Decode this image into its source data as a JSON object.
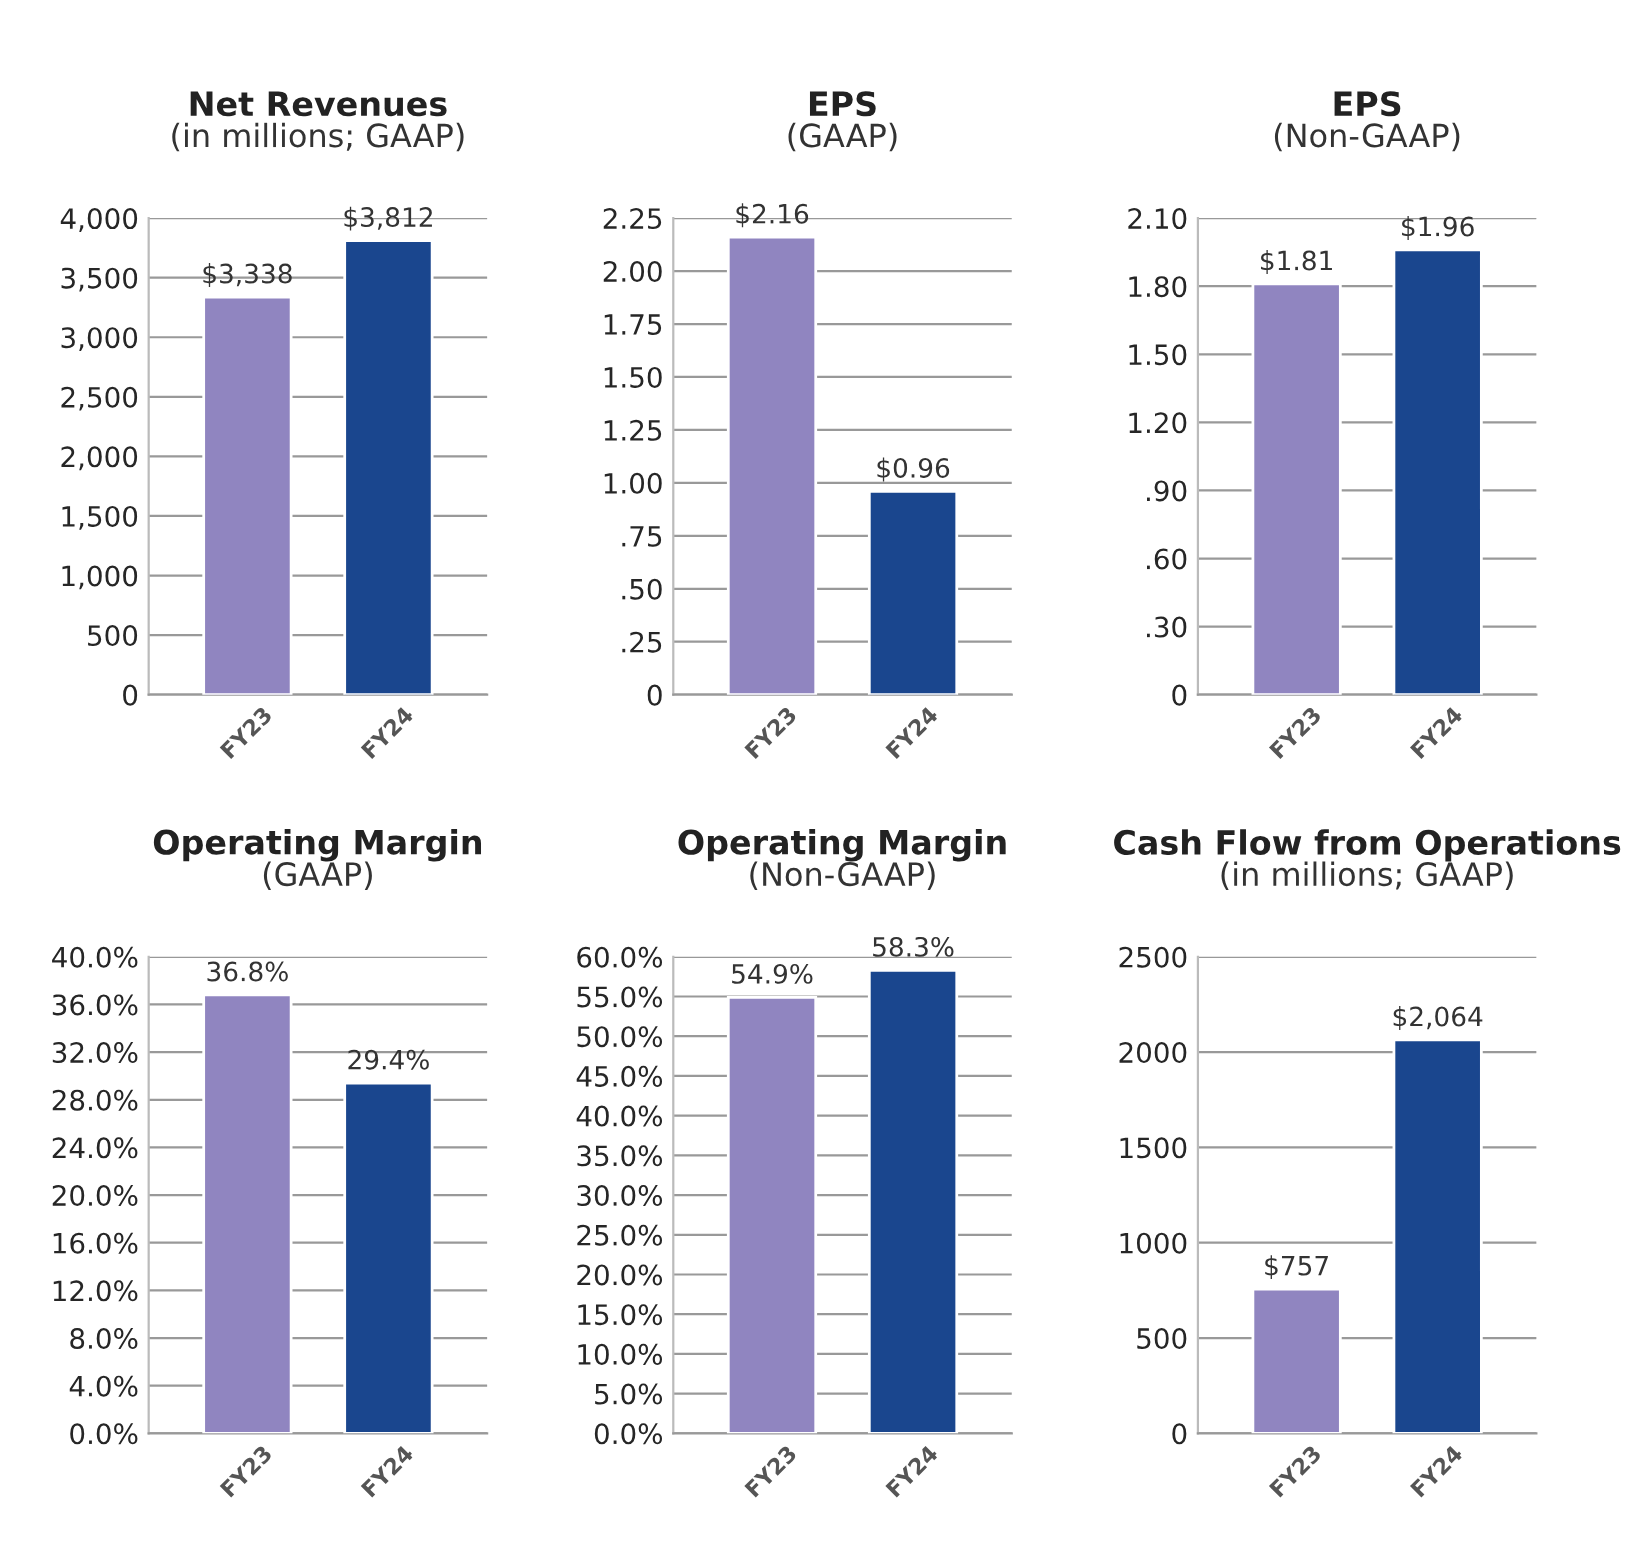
{
  "chart_data": [
    {
      "type": "bar",
      "title": "Net Revenues",
      "subtitle": "(in millions; GAAP)",
      "categories": [
        "FY23",
        "FY24"
      ],
      "values": [
        3338,
        3812
      ],
      "colors": [
        "#9085c0",
        "#1a468e"
      ],
      "value_labels": [
        "$3,338",
        "$3,812"
      ],
      "ylim": [
        0,
        4000
      ],
      "yticks": [
        0,
        500,
        {
          "value": 1000,
          "label": "1,000"
        },
        {
          "value": 1500,
          "label": "1,500"
        },
        {
          "value": 2000,
          "label": "2,000"
        },
        {
          "value": 2500,
          "label": "2,500"
        },
        {
          "value": 3000,
          "label": "3,000"
        },
        {
          "value": 3500,
          "label": "3,500"
        },
        {
          "value": 4000,
          "label": "4,000"
        }
      ],
      "grid": "y"
    },
    {
      "type": "bar",
      "title": "EPS",
      "subtitle": "(GAAP)",
      "categories": [
        "FY23",
        "FY24"
      ],
      "values": [
        2.16,
        0.96
      ],
      "colors": [
        "#9085c0",
        "#1a468e"
      ],
      "value_labels": [
        "$2.16",
        "$0.96"
      ],
      "ylim": [
        0,
        2.25
      ],
      "yticks": [
        0,
        {
          "value": 0.25,
          "label": ".25"
        },
        {
          "value": 0.5,
          "label": ".50"
        },
        {
          "value": 0.75,
          "label": ".75"
        },
        {
          "value": 1.0,
          "label": "1.00"
        },
        {
          "value": 1.25,
          "label": "1.25"
        },
        {
          "value": 1.5,
          "label": "1.50"
        },
        {
          "value": 1.75,
          "label": "1.75"
        },
        {
          "value": 2.0,
          "label": "2.00"
        },
        {
          "value": 2.25,
          "label": "2.25"
        }
      ],
      "grid": "y"
    },
    {
      "type": "bar",
      "title": "EPS",
      "subtitle": "(Non-GAAP)",
      "categories": [
        "FY23",
        "FY24"
      ],
      "values": [
        1.81,
        1.96
      ],
      "colors": [
        "#9085c0",
        "#1a468e"
      ],
      "value_labels": [
        "$1.81",
        "$1.96"
      ],
      "ylim": [
        0,
        2.1
      ],
      "yticks": [
        0,
        {
          "value": 0.3,
          "label": ".30"
        },
        {
          "value": 0.6,
          "label": ".60"
        },
        {
          "value": 0.9,
          "label": ".90"
        },
        {
          "value": 1.2,
          "label": "1.20"
        },
        {
          "value": 1.5,
          "label": "1.50"
        },
        {
          "value": 1.8,
          "label": "1.80"
        },
        {
          "value": 2.1,
          "label": "2.10"
        }
      ],
      "grid": "y"
    },
    {
      "type": "bar",
      "title": "Operating Margin",
      "subtitle": "(GAAP)",
      "categories": [
        "FY23",
        "FY24"
      ],
      "values": [
        36.8,
        29.4
      ],
      "colors": [
        "#9085c0",
        "#1a468e"
      ],
      "value_labels": [
        "36.8%",
        "29.4%"
      ],
      "ylim": [
        0,
        40
      ],
      "yticks": [
        {
          "value": 0,
          "label": "0.0%"
        },
        {
          "value": 4,
          "label": "4.0%"
        },
        {
          "value": 8,
          "label": "8.0%"
        },
        {
          "value": 12,
          "label": "12.0%"
        },
        {
          "value": 16,
          "label": "16.0%"
        },
        {
          "value": 20,
          "label": "20.0%"
        },
        {
          "value": 24,
          "label": "24.0%"
        },
        {
          "value": 28,
          "label": "28.0%"
        },
        {
          "value": 32,
          "label": "32.0%"
        },
        {
          "value": 36,
          "label": "36.0%"
        },
        {
          "value": 40,
          "label": "40.0%"
        }
      ],
      "grid": "y"
    },
    {
      "type": "bar",
      "title": "Operating Margin",
      "subtitle": "(Non-GAAP)",
      "categories": [
        "FY23",
        "FY24"
      ],
      "values": [
        54.9,
        58.3
      ],
      "colors": [
        "#9085c0",
        "#1a468e"
      ],
      "value_labels": [
        "54.9%",
        "58.3%"
      ],
      "ylim": [
        0,
        60
      ],
      "yticks": [
        {
          "value": 0,
          "label": "0.0%"
        },
        {
          "value": 5,
          "label": "5.0%"
        },
        {
          "value": 10,
          "label": "10.0%"
        },
        {
          "value": 15,
          "label": "15.0%"
        },
        {
          "value": 20,
          "label": "20.0%"
        },
        {
          "value": 25,
          "label": "25.0%"
        },
        {
          "value": 30,
          "label": "30.0%"
        },
        {
          "value": 35,
          "label": "35.0%"
        },
        {
          "value": 40,
          "label": "40.0%"
        },
        {
          "value": 45,
          "label": "45.0%"
        },
        {
          "value": 50,
          "label": "50.0%"
        },
        {
          "value": 55,
          "label": "55.0%"
        },
        {
          "value": 60,
          "label": "60.0%"
        }
      ],
      "grid": "y"
    },
    {
      "type": "bar",
      "title": "Cash Flow from Operations",
      "subtitle": "(in millions; GAAP)",
      "categories": [
        "FY23",
        "FY24"
      ],
      "values": [
        757,
        2064
      ],
      "colors": [
        "#9085c0",
        "#1a468e"
      ],
      "value_labels": [
        "$757",
        "$2,064"
      ],
      "ylim": [
        0,
        2500
      ],
      "yticks": [
        0,
        500,
        1000,
        1500,
        2000,
        2500
      ],
      "grid": "y"
    }
  ]
}
